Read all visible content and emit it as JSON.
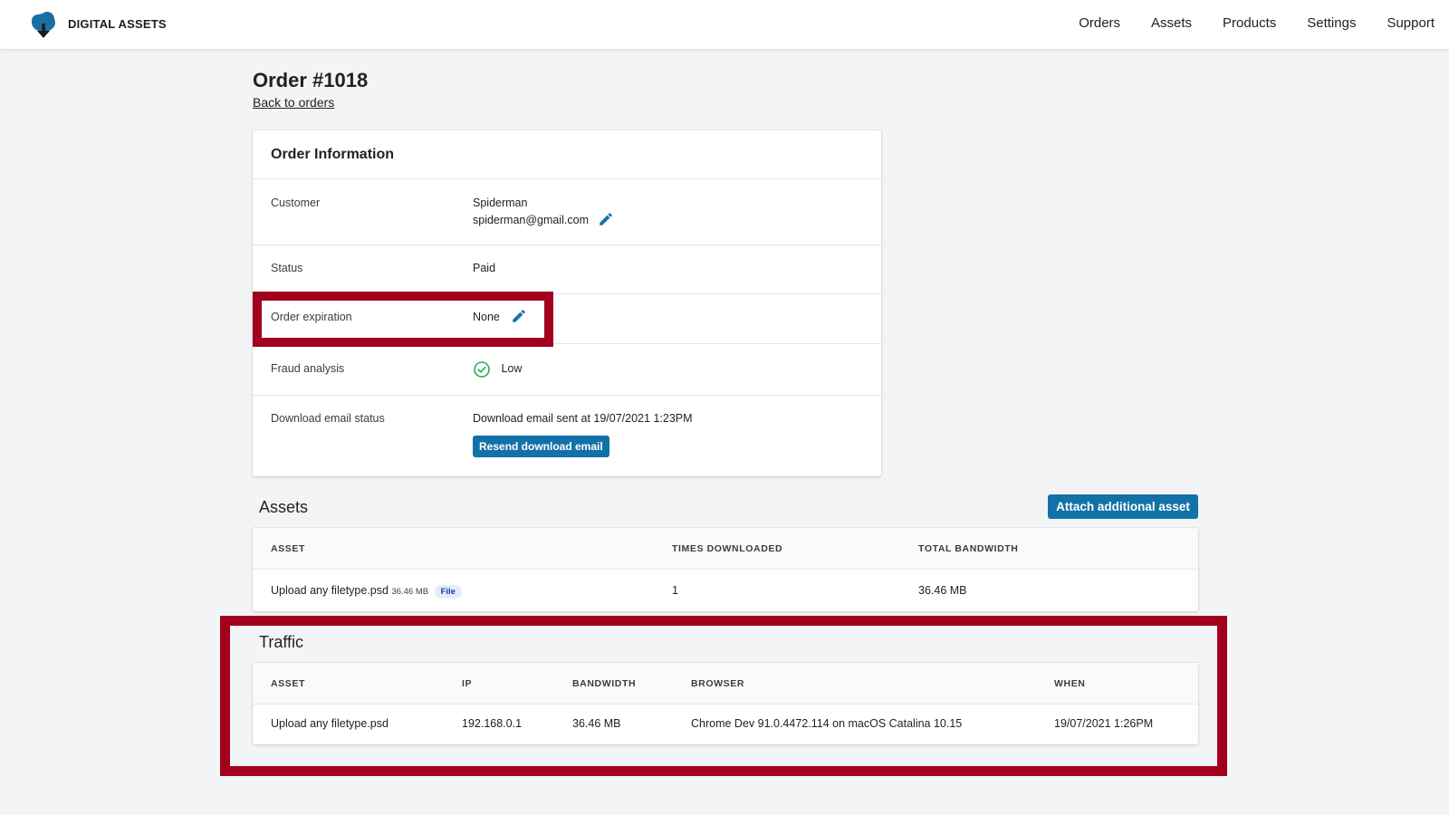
{
  "brand": {
    "name": "DIGITAL ASSETS"
  },
  "nav": [
    "Orders",
    "Assets",
    "Products",
    "Settings",
    "Support"
  ],
  "header": {
    "title": "Order #1018",
    "back_link": "Back to orders"
  },
  "order_info": {
    "title": "Order Information",
    "customer": {
      "label": "Customer",
      "name": "Spiderman",
      "email": "spiderman@gmail.com"
    },
    "status": {
      "label": "Status",
      "value": "Paid"
    },
    "expiration": {
      "label": "Order expiration",
      "value": "None"
    },
    "fraud": {
      "label": "Fraud analysis",
      "value": "Low"
    },
    "download_email": {
      "label": "Download email status",
      "value": "Download email sent at 19/07/2021 1:23PM",
      "button": "Resend download email"
    }
  },
  "assets": {
    "title": "Assets",
    "attach_button": "Attach additional asset",
    "columns": [
      "ASSET",
      "TIMES DOWNLOADED",
      "TOTAL BANDWIDTH"
    ],
    "rows": [
      {
        "asset": "Upload any filetype.psd",
        "size": "36.46 MB",
        "type": "File",
        "times": "1",
        "bandwidth": "36.46 MB"
      }
    ]
  },
  "traffic": {
    "title": "Traffic",
    "columns": [
      "ASSET",
      "IP",
      "BANDWIDTH",
      "BROWSER",
      "WHEN"
    ],
    "rows": [
      {
        "asset": "Upload any filetype.psd",
        "ip": "192.168.0.1",
        "bandwidth": "36.46 MB",
        "browser": "Chrome Dev 91.0.4472.114 on macOS Catalina 10.15",
        "when": "19/07/2021 1:26PM"
      }
    ]
  },
  "colors": {
    "accent": "#1272a8",
    "highlight": "#a2001d",
    "success": "#2eaa5c"
  }
}
